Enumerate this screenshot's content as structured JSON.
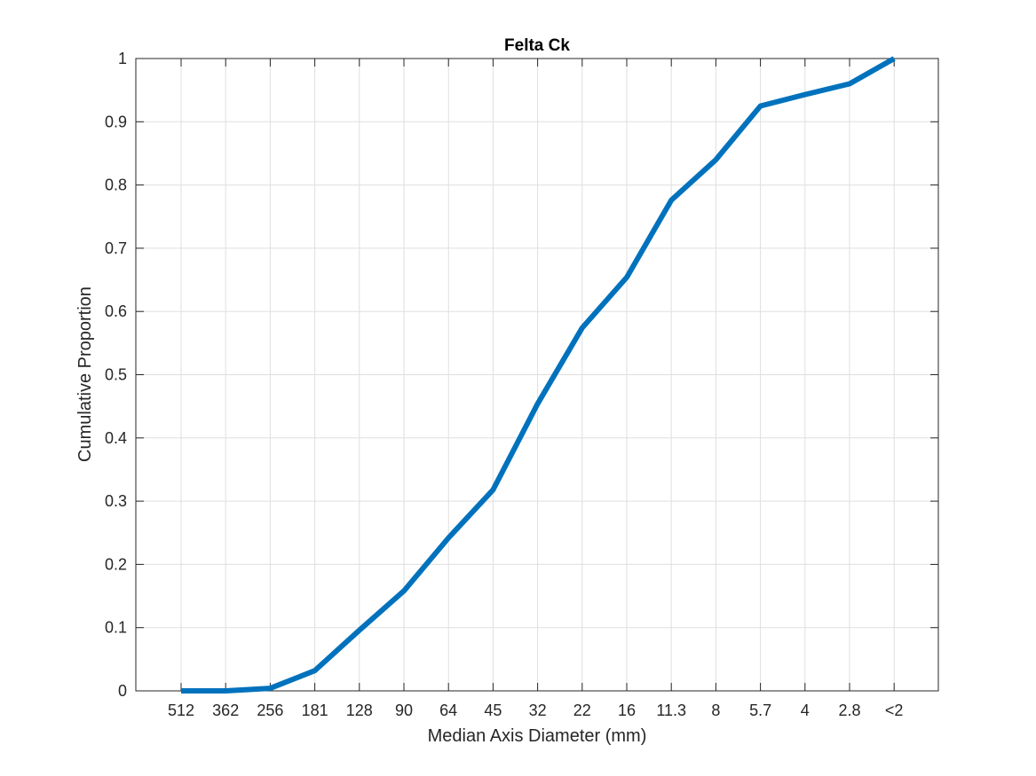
{
  "chart_data": {
    "type": "line",
    "title": "Felta Ck",
    "xlabel": "Median Axis Diameter (mm)",
    "ylabel": "Cumulative Proportion",
    "categories": [
      "512",
      "362",
      "256",
      "181",
      "128",
      "90",
      "64",
      "45",
      "32",
      "22",
      "16",
      "11.3",
      "8",
      "5.7",
      "4",
      "2.8",
      "<2"
    ],
    "values": [
      0,
      0,
      0.004,
      0.032,
      0.096,
      0.158,
      0.242,
      0.318,
      0.454,
      0.574,
      0.654,
      0.776,
      0.84,
      0.925,
      0.943,
      0.96,
      1.0
    ],
    "ylim": [
      0,
      1
    ],
    "yticks": [
      "0",
      "0.1",
      "0.2",
      "0.3",
      "0.4",
      "0.5",
      "0.6",
      "0.7",
      "0.8",
      "0.9",
      "1"
    ],
    "grid": true,
    "line_color": "#0072BD"
  }
}
